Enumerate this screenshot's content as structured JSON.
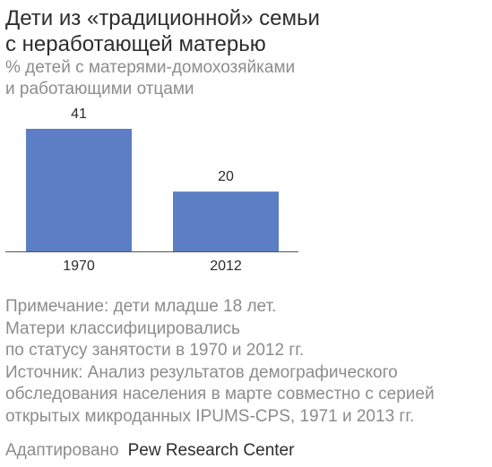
{
  "title_lines": [
    "Дети из «традиционной» семьи",
    "с неработающей матерью"
  ],
  "subtitle_lines": [
    "% детей с матерями-домохозяйками",
    "и работающими отцами"
  ],
  "chart_data": {
    "type": "bar",
    "categories": [
      "1970",
      "2012"
    ],
    "values": [
      41,
      20
    ],
    "value_labels": [
      "41",
      "20"
    ],
    "ylim": [
      0,
      41
    ],
    "grid": false,
    "bar_color": "#5b7ec4"
  },
  "note_lines": [
    "Примечание: дети младше 18 лет.",
    "Матери классифицировались",
    "по статусу занятости в 1970 и 2012 гг.",
    "Источник: Анализ результатов демографического",
    "обследования населения в марте совместно с серией",
    "открытых микроданных IPUMS-CPS, 1971 и 2013 гг."
  ],
  "footer": {
    "prefix": "Адаптировано",
    "brand": "Pew Research Center"
  }
}
